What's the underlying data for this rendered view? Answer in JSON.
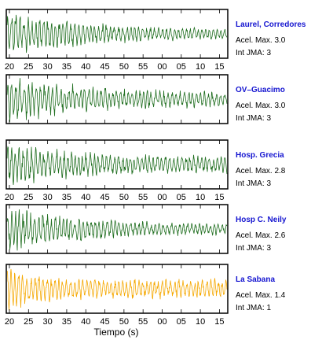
{
  "chart_data": {
    "type": "line",
    "xlabel": "Tiempo (s)",
    "tick_labels": [
      "20",
      "25",
      "30",
      "35",
      "40",
      "45",
      "50",
      "55",
      "00",
      "05",
      "10",
      "15"
    ],
    "colors": {
      "green": "#1f6e1f",
      "orange": "#f5a800",
      "label": "#1515d0"
    },
    "series": [
      {
        "name": "Laurel, Corredores",
        "acel_label": "Acel. Max. 3.0",
        "int_label": "Int JMA: 3",
        "color": "green",
        "decay": 0.55,
        "base": 0.18,
        "onset": 0.0,
        "seed": 3
      },
      {
        "name": "OV–Guacimo",
        "acel_label": "Acel. Max. 3.0",
        "int_label": "Int JMA: 3",
        "color": "green",
        "decay": 0.55,
        "base": 0.28,
        "onset": 0.0,
        "seed": 7
      },
      {
        "name": "Hosp. Grecia",
        "acel_label": "Acel. Max. 2.8",
        "int_label": "Int JMA: 3",
        "color": "green",
        "decay": 0.4,
        "base": 0.35,
        "onset": 0.0,
        "seed": 11
      },
      {
        "name": "Hosp C. Neily",
        "acel_label": "Acel. Max. 2.6",
        "int_label": "Int JMA: 3",
        "color": "green",
        "decay": 0.55,
        "base": 0.18,
        "onset": 0.0,
        "seed": 17
      },
      {
        "name": "La Sabana",
        "acel_label": "Acel. Max. 1.4",
        "int_label": "Int JMA: 1",
        "color": "orange",
        "decay": 0.2,
        "base": 0.4,
        "onset": 0.0,
        "seed": 23
      }
    ]
  }
}
